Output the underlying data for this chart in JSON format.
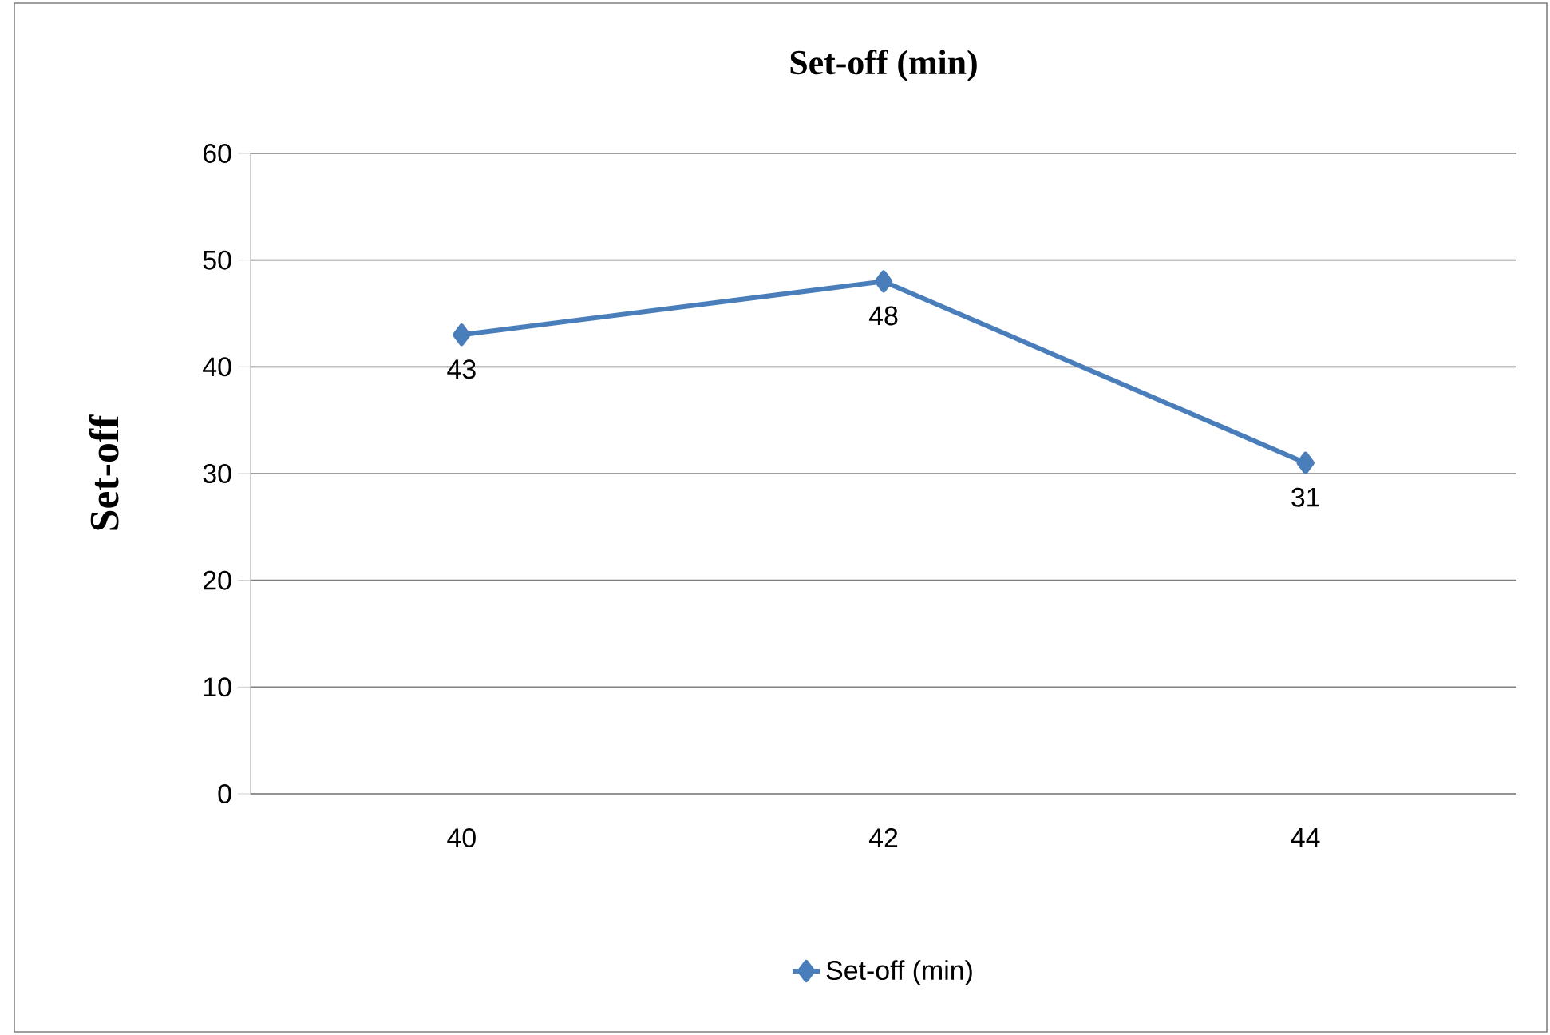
{
  "chart_data": {
    "type": "line",
    "title": "Set-off (min)",
    "ylabel": "Set-off",
    "categories": [
      "40",
      "42",
      "44"
    ],
    "series": [
      {
        "name": "Set-off (min)",
        "color": "#4a7ebb",
        "values": [
          43,
          48,
          31
        ]
      }
    ],
    "ylim": [
      0,
      60
    ],
    "yticks": [
      0,
      10,
      20,
      30,
      40,
      50,
      60
    ],
    "grid": "y",
    "legend": "bottom",
    "marker": "diamond",
    "line_style": "solid",
    "data_labels": true
  }
}
